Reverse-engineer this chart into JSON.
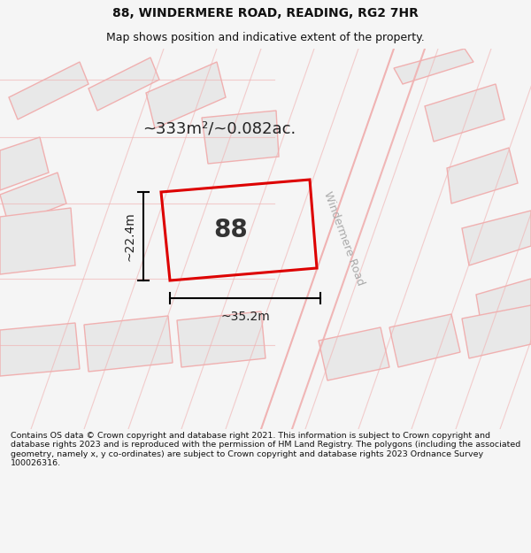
{
  "title_line1": "88, WINDERMERE ROAD, READING, RG2 7HR",
  "title_line2": "Map shows position and indicative extent of the property.",
  "footer_text": "Contains OS data © Crown copyright and database right 2021. This information is subject to Crown copyright and database rights 2023 and is reproduced with the permission of HM Land Registry. The polygons (including the associated geometry, namely x, y co-ordinates) are subject to Crown copyright and database rights 2023 Ordnance Survey 100026316.",
  "area_text": "~333m²/~0.082ac.",
  "label_88": "88",
  "dim_width": "~35.2m",
  "dim_height": "~22.4m",
  "bg_color": "#f5f5f5",
  "map_bg": "#ffffff",
  "road_label": "Windermere Road",
  "highlight_color": "#dd0000",
  "building_fill": "#e8e8e8",
  "building_stroke": "#f0b0b0",
  "road_line_color": "#f0b0b0",
  "title_fontsize": 10,
  "subtitle_fontsize": 9,
  "footer_fontsize": 6.8
}
